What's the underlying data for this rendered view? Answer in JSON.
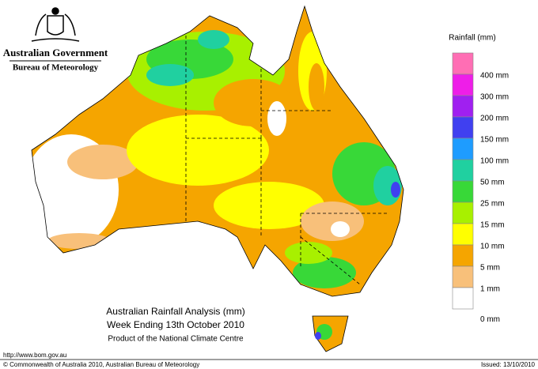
{
  "header": {
    "government": "Australian Government",
    "agency": "Bureau of Meteorology"
  },
  "legend": {
    "title": "Rainfall (mm)",
    "colors": [
      "#ff6eb4",
      "#ee1ee8",
      "#a020f0",
      "#4040f0",
      "#1e9cff",
      "#20d0a0",
      "#38d838",
      "#a8f000",
      "#ffff00",
      "#f5a500",
      "#f8c07a",
      "#ffffff"
    ],
    "labels": [
      "400 mm",
      "300 mm",
      "200 mm",
      "150 mm",
      "100 mm",
      "50 mm",
      "25 mm",
      "15 mm",
      "10 mm",
      "5 mm",
      "1 mm",
      "0 mm"
    ]
  },
  "map": {
    "title": "Australian Rainfall Analysis (mm)",
    "subtitle": "Week Ending 13th October 2010",
    "note": "Product of the National Climate Centre"
  },
  "footer": {
    "url": "http://www.bom.gov.au",
    "copyright": "© Commonwealth of Australia 2010, Australian Bureau of Meteorology",
    "issued": "Issued: 13/10/2010"
  }
}
